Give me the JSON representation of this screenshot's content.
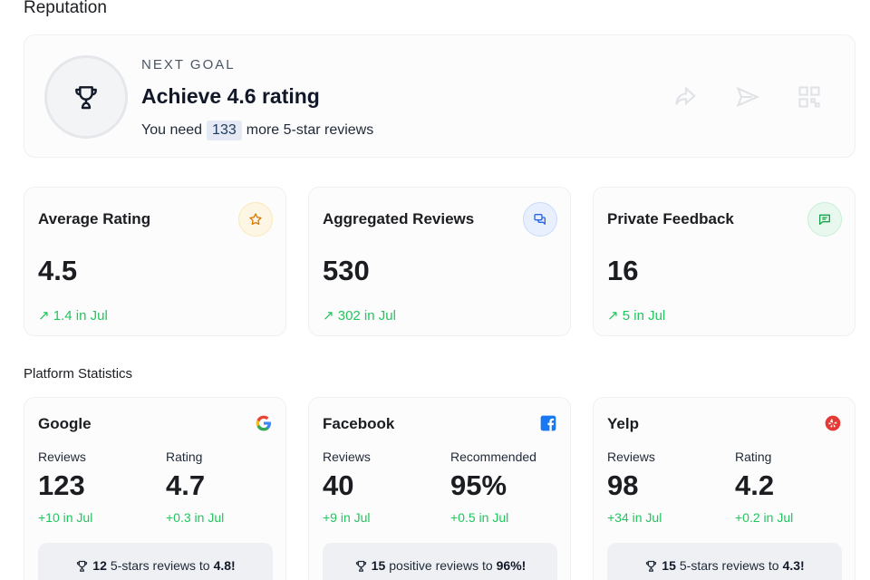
{
  "page": {
    "title": "Reputation"
  },
  "goal": {
    "label": "NEXT GOAL",
    "title": "Achieve 4.6 rating",
    "prefix": "You need",
    "count": "133",
    "suffix": "more 5-star reviews"
  },
  "stats": [
    {
      "title": "Average Rating",
      "value": "4.5",
      "trend": "↗ 1.4 in Jul",
      "icon": "star-icon",
      "color": "#f59e0b"
    },
    {
      "title": "Aggregated Reviews",
      "value": "530",
      "trend": "↗ 302 in Jul",
      "icon": "chat-bubbles-icon",
      "color": "#3b82f6"
    },
    {
      "title": "Private Feedback",
      "value": "16",
      "trend": "↗ 5 in Jul",
      "icon": "message-icon",
      "color": "#22c55e"
    }
  ],
  "platforms_title": "Platform Statistics",
  "platforms": [
    {
      "name": "Google",
      "logo": "google-logo-icon",
      "m1": {
        "label": "Reviews",
        "value": "123",
        "delta": "+10 in Jul"
      },
      "m2": {
        "label": "Rating",
        "value": "4.7",
        "delta": "+0.3 in Jul"
      },
      "banner": {
        "count": "12",
        "text": "5-stars reviews to",
        "target": "4.8!"
      }
    },
    {
      "name": "Facebook",
      "logo": "facebook-logo-icon",
      "m1": {
        "label": "Reviews",
        "value": "40",
        "delta": "+9 in Jul"
      },
      "m2": {
        "label": "Recommended",
        "value": "95%",
        "delta": "+0.5 in Jul"
      },
      "banner": {
        "count": "15",
        "text": "positive reviews to",
        "target": "96%!"
      }
    },
    {
      "name": "Yelp",
      "logo": "yelp-logo-icon",
      "m1": {
        "label": "Reviews",
        "value": "98",
        "delta": "+34 in Jul"
      },
      "m2": {
        "label": "Rating",
        "value": "4.2",
        "delta": "+0.2 in Jul"
      },
      "banner": {
        "count": "15",
        "text": "5-stars reviews to",
        "target": "4.3!"
      }
    }
  ]
}
